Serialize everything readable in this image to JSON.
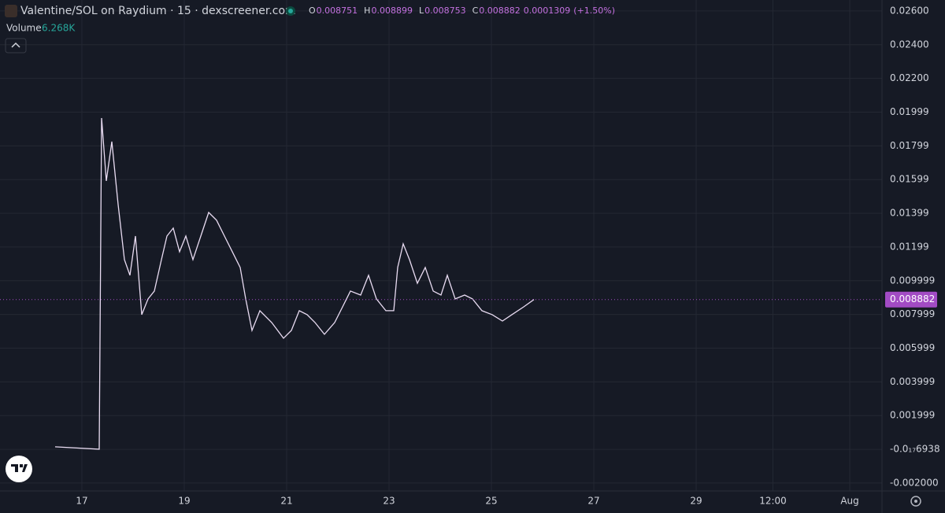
{
  "chart_data": {
    "type": "line",
    "title": "Valentine/SOL on Raydium · 15 · dexscreener.com",
    "ohlc": {
      "labels": [
        "O",
        "H",
        "L",
        "C"
      ],
      "values": [
        0.008751,
        0.008899,
        0.008753,
        0.008882
      ],
      "change": 0.0001309,
      "change_label": "(+1.50%)"
    },
    "volume_label": "Volume",
    "volume_value_label": "6.268K",
    "x": [
      16.477,
      17.338,
      17.385,
      17.477,
      17.585,
      17.708,
      17.831,
      17.938,
      18.046,
      18.169,
      18.292,
      18.415,
      18.554,
      18.662,
      18.785,
      18.908,
      19.031,
      19.169,
      19.323,
      19.477,
      19.631,
      19.785,
      19.938,
      20.092,
      20.2,
      20.323,
      20.477,
      20.708,
      20.938,
      21.092,
      21.246,
      21.4,
      21.554,
      21.738,
      21.938,
      22.092,
      22.246,
      22.446,
      22.6,
      22.754,
      22.938,
      23.092,
      23.169,
      23.277,
      23.4,
      23.554,
      23.708,
      23.862,
      24.015,
      24.138,
      24.292,
      24.477,
      24.631,
      24.815,
      25.015,
      25.215,
      25.4,
      25.631,
      25.831
    ],
    "series": [
      {
        "color": "#e9dcf2",
        "values": [
          0.00015,
          1e-05,
          0.01965,
          0.01592,
          0.01825,
          0.01452,
          0.01125,
          0.01032,
          0.01265,
          0.00799,
          0.00892,
          0.00939,
          0.01125,
          0.01265,
          0.01312,
          0.01172,
          0.01265,
          0.01125,
          0.01265,
          0.01405,
          0.01359,
          0.01265,
          0.01172,
          0.01079,
          0.00892,
          0.00705,
          0.00822,
          0.00752,
          0.00659,
          0.00705,
          0.00822,
          0.00799,
          0.00752,
          0.00682,
          0.00752,
          0.00845,
          0.00939,
          0.00915,
          0.01032,
          0.00892,
          0.00822,
          0.00822,
          0.01079,
          0.01219,
          0.01125,
          0.00985,
          0.01079,
          0.00939,
          0.00915,
          0.01032,
          0.00892,
          0.00915,
          0.00892,
          0.00822,
          0.00799,
          0.00761,
          0.00799,
          0.00845,
          0.008882
        ]
      }
    ],
    "price_line_color": "#a24bc4",
    "xlim": [
      15.4,
      32.63
    ],
    "xticks": [
      17,
      19,
      21,
      23,
      25,
      27,
      29,
      {
        "value": 30.5,
        "label": "12:00"
      },
      {
        "value": 32,
        "label": "Aug"
      }
    ],
    "ylim": [
      -0.00247,
      0.02665
    ],
    "yticks": [
      {
        "value": 0.026,
        "label": "0.02600"
      },
      {
        "value": 0.024,
        "label": "0.02400"
      },
      {
        "value": 0.022,
        "label": "0.02200"
      },
      {
        "value": 0.02,
        "label": "0.01999"
      },
      {
        "value": 0.018,
        "label": "0.01799"
      },
      {
        "value": 0.016,
        "label": "0.01599"
      },
      {
        "value": 0.014,
        "label": "0.01399"
      },
      {
        "value": 0.012,
        "label": "0.01199"
      },
      {
        "value": 0.01,
        "label": "0.009999"
      },
      {
        "value": 0.008,
        "label": "0.007999"
      },
      {
        "value": 0.006,
        "label": "0.005999"
      },
      {
        "value": 0.004,
        "label": "0.003999"
      },
      {
        "value": 0.002,
        "label": "0.001999"
      },
      {
        "value": 0,
        "label": "-0.0₁₇6938"
      },
      {
        "value": -0.002,
        "label": "-0.002000"
      }
    ],
    "grid": true
  }
}
